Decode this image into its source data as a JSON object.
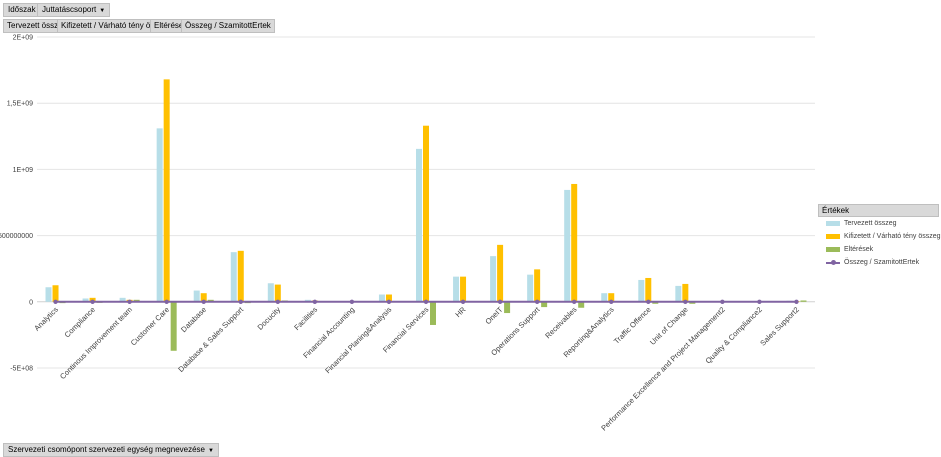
{
  "filters": {
    "top": [
      {
        "label": "Időszak"
      },
      {
        "label": "Juttatáscsoport"
      }
    ],
    "values": [
      {
        "label": "Tervezett összeg"
      },
      {
        "label": "Kifizetett / Várható tény összeg"
      },
      {
        "label": "Eltérések"
      },
      {
        "label": "Összeg / SzamitottErtek"
      }
    ],
    "axis": {
      "label": "Szervezeti csomópont szervezeti egység megnevezése"
    }
  },
  "dropdown_glyph": "▼",
  "legend": {
    "title": "Értékek",
    "items": [
      {
        "label": "Tervezett összeg",
        "color": "#b7dee8"
      },
      {
        "label": "Kifizetett / Várható tény összeg",
        "color": "#ffc000"
      },
      {
        "label": "Eltérések",
        "color": "#9bbb59"
      },
      {
        "label": "Összeg / SzamitottErtek",
        "color": "#8064a2"
      }
    ]
  },
  "chart_data": {
    "type": "bar",
    "ylim": [
      -500000000,
      2000000000
    ],
    "yticks": [
      {
        "value": 2000000000,
        "label": "2E+09"
      },
      {
        "value": 1500000000,
        "label": "1,5E+09"
      },
      {
        "value": 1000000000,
        "label": "1E+09"
      },
      {
        "value": 500000000,
        "label": "500000000"
      },
      {
        "value": 0,
        "label": "0"
      },
      {
        "value": -500000000,
        "label": "-5E+08"
      }
    ],
    "grid": true,
    "legend_position": "right",
    "categories": [
      "Analytics",
      "Compliance",
      "Continous Improvement team",
      "Customer Care",
      "Database",
      "Database & Sales Support",
      "Docucity",
      "Facilities",
      "Financial Accounting",
      "Financial Planing&Analysis",
      "Financial Services",
      "HR",
      "OneIT",
      "Operations Support",
      "Receivables",
      "Reporting&Analytics",
      "Traffic Offence",
      "Unit of Change",
      "Performance Excellence and Project Management2",
      "Quality & Compliance2",
      "Sales Support2"
    ],
    "series": [
      {
        "name": "Tervezett összeg",
        "color": "#b7dee8",
        "type": "bar",
        "values": [
          110000000,
          25000000,
          30000000,
          1310000000,
          85000000,
          375000000,
          140000000,
          15000000,
          5000000,
          55000000,
          1155000000,
          190000000,
          345000000,
          205000000,
          845000000,
          65000000,
          165000000,
          120000000,
          3000000,
          2000000,
          8000000
        ]
      },
      {
        "name": "Kifizetett / Várható tény összeg",
        "color": "#ffc000",
        "type": "bar",
        "values": [
          125000000,
          30000000,
          15000000,
          1680000000,
          65000000,
          385000000,
          130000000,
          10000000,
          3000000,
          55000000,
          1330000000,
          190000000,
          430000000,
          245000000,
          890000000,
          65000000,
          180000000,
          135000000,
          3000000,
          2000000,
          5000000
        ]
      },
      {
        "name": "Eltérések",
        "color": "#9bbb59",
        "type": "bar",
        "values": [
          -10000000,
          -8000000,
          15000000,
          -370000000,
          15000000,
          -10000000,
          10000000,
          5000000,
          2000000,
          0,
          -175000000,
          0,
          -85000000,
          -40000000,
          -45000000,
          0,
          -15000000,
          -15000000,
          0,
          -5000000,
          10000000
        ]
      },
      {
        "name": "Összeg / SzamitottErtek",
        "color": "#8064a2",
        "type": "line",
        "values": [
          0,
          0,
          0,
          0,
          0,
          0,
          0,
          0,
          0,
          0,
          0,
          0,
          0,
          0,
          0,
          0,
          0,
          0,
          0,
          0,
          0
        ]
      }
    ]
  }
}
